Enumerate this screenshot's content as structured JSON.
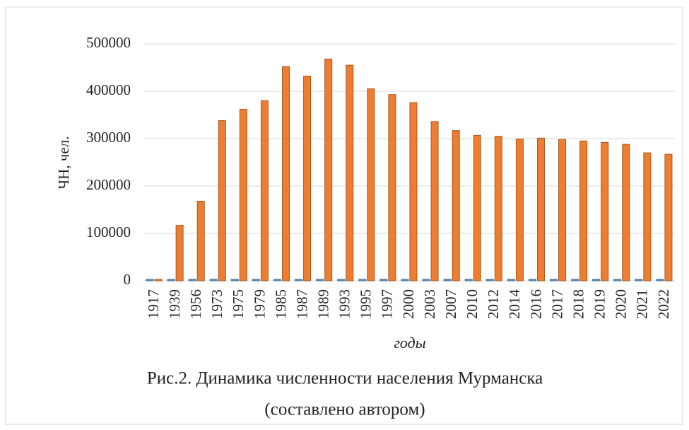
{
  "chart_data": {
    "type": "bar",
    "y_label": "ЧН, чел.",
    "x_label": "годы",
    "caption": [
      "Рис.2. Динамика численности населения Мурманска",
      "(составлено автором)"
    ],
    "categories": [
      "1917",
      "1939",
      "1956",
      "1973",
      "1975",
      "1979",
      "1985",
      "1987",
      "1989",
      "1993",
      "1995",
      "1997",
      "2000",
      "2003",
      "2007",
      "2010",
      "2012",
      "2014",
      "2016",
      "2017",
      "2018",
      "2019",
      "2020",
      "2021",
      "2022"
    ],
    "series": [
      {
        "color": "#5b9bd5",
        "values": [
          0,
          0,
          0,
          0,
          0,
          0,
          0,
          0,
          0,
          0,
          0,
          0,
          0,
          0,
          0,
          0,
          0,
          0,
          0,
          0,
          0,
          0,
          0,
          0,
          0
        ]
      },
      {
        "color": "#ed7d31",
        "values": [
          2000,
          117000,
          168000,
          338000,
          362000,
          380000,
          452000,
          432000,
          468000,
          455000,
          405000,
          393000,
          376000,
          336000,
          317000,
          307000,
          305000,
          299000,
          301000,
          298000,
          295000,
          292000,
          288000,
          270000,
          267000
        ]
      }
    ],
    "ylim": [
      0,
      500000
    ],
    "yticks": [
      0,
      100000,
      200000,
      300000,
      400000,
      500000
    ],
    "grid": true
  }
}
